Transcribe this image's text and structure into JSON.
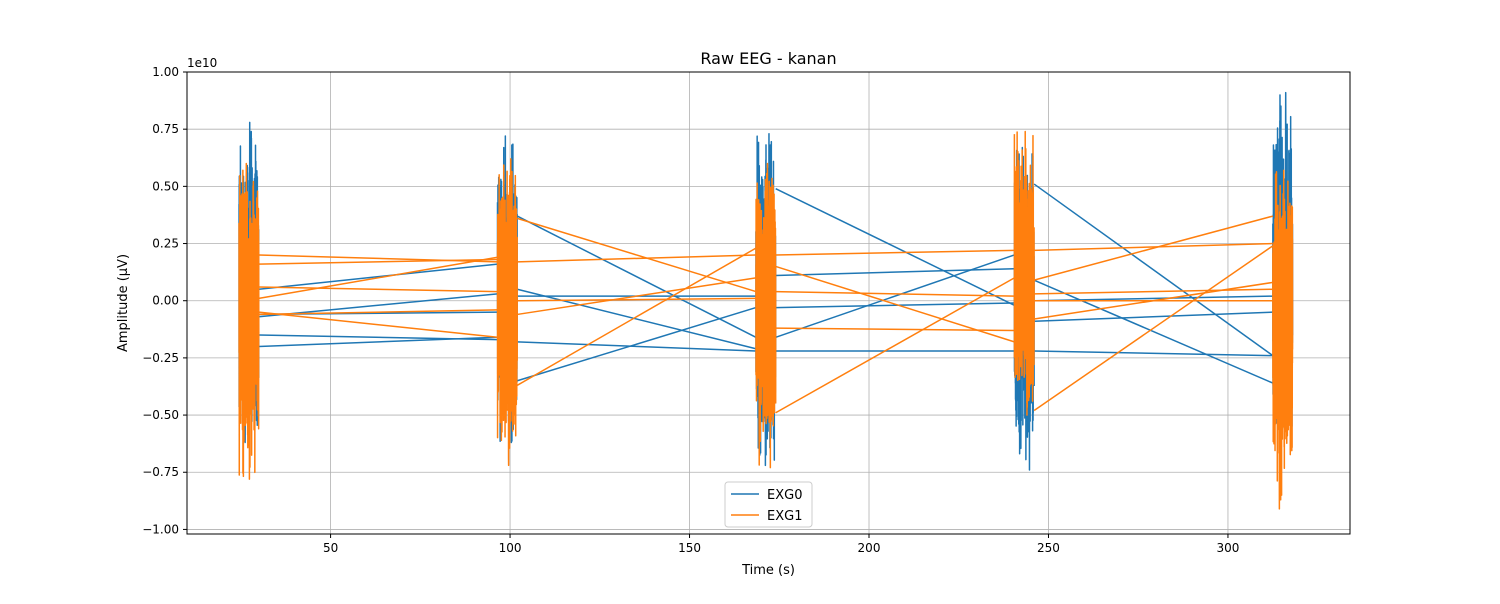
{
  "chart_data": {
    "type": "line",
    "title": "Raw EEG - kanan",
    "xlabel": "Time (s)",
    "ylabel": "Amplitude (µV)",
    "offset_text": "1e10",
    "xlim": [
      10,
      334
    ],
    "ylim": [
      -1.02,
      1.0
    ],
    "x_ticks": [
      50,
      100,
      150,
      200,
      250,
      300
    ],
    "x_tick_labels": [
      "50",
      "100",
      "150",
      "200",
      "250",
      "300"
    ],
    "y_ticks": [
      -1.0,
      -0.75,
      -0.5,
      -0.25,
      0.0,
      0.25,
      0.5,
      0.75,
      1.0
    ],
    "y_tick_labels": [
      "−1.00",
      "−0.75",
      "−0.50",
      "−0.25",
      "0.00",
      "0.25",
      "0.50",
      "0.75",
      "1.00"
    ],
    "grid": true,
    "legend": "lower-center",
    "bursts": [
      {
        "start": 24.5,
        "end": 30
      },
      {
        "start": 96.5,
        "end": 102
      },
      {
        "start": 168.5,
        "end": 174
      },
      {
        "start": 240.5,
        "end": 246
      },
      {
        "start": 312.5,
        "end": 318
      }
    ],
    "series": [
      {
        "name": "EXG0",
        "color": "#1f77b4",
        "burst_peaks": [
          [
            -0.62,
            0.78
          ],
          [
            -0.62,
            0.72
          ],
          [
            -0.72,
            0.73
          ],
          [
            -0.74,
            0.67
          ],
          [
            -0.56,
            0.91
          ]
        ],
        "connectors": [
          [
            [
              30,
              0.05
            ],
            [
              96.5,
              0.16
            ]
          ],
          [
            [
              30,
              -0.07
            ],
            [
              96.5,
              0.03
            ]
          ],
          [
            [
              30,
              -0.15
            ],
            [
              96.5,
              -0.17
            ]
          ],
          [
            [
              30,
              -0.2
            ],
            [
              96.5,
              -0.16
            ]
          ],
          [
            [
              30,
              -0.06
            ],
            [
              96.5,
              -0.05
            ]
          ],
          [
            [
              102,
              0.37
            ],
            [
              168.5,
              -0.16
            ]
          ],
          [
            [
              102,
              0.05
            ],
            [
              168.5,
              -0.21
            ]
          ],
          [
            [
              102,
              -0.18
            ],
            [
              168.5,
              -0.22
            ]
          ],
          [
            [
              102,
              -0.35
            ],
            [
              168.5,
              -0.03
            ]
          ],
          [
            [
              102,
              0.02
            ],
            [
              168.5,
              0.02
            ]
          ],
          [
            [
              174,
              0.49
            ],
            [
              240.5,
              -0.02
            ]
          ],
          [
            [
              174,
              -0.16
            ],
            [
              240.5,
              0.2
            ]
          ],
          [
            [
              174,
              0.11
            ],
            [
              240.5,
              0.14
            ]
          ],
          [
            [
              174,
              -0.22
            ],
            [
              240.5,
              -0.22
            ]
          ],
          [
            [
              174,
              -0.03
            ],
            [
              240.5,
              -0.01
            ]
          ],
          [
            [
              246,
              0.51
            ],
            [
              312.5,
              -0.24
            ]
          ],
          [
            [
              246,
              0.09
            ],
            [
              312.5,
              -0.36
            ]
          ],
          [
            [
              246,
              -0.09
            ],
            [
              312.5,
              -0.05
            ]
          ],
          [
            [
              246,
              -0.22
            ],
            [
              312.5,
              -0.24
            ]
          ],
          [
            [
              246,
              0.0
            ],
            [
              312.5,
              0.02
            ]
          ],
          [
            [
              318,
              -0.08
            ],
            [
              318,
              -0.08
            ]
          ]
        ]
      },
      {
        "name": "EXG1",
        "color": "#ff7f0e",
        "burst_peaks": [
          [
            -0.78,
            0.6
          ],
          [
            -0.72,
            0.62
          ],
          [
            -0.73,
            0.6
          ],
          [
            -0.5,
            0.74
          ],
          [
            -0.91,
            0.57
          ]
        ],
        "connectors": [
          [
            [
              30,
              0.2
            ],
            [
              96.5,
              0.17
            ]
          ],
          [
            [
              30,
              0.16
            ],
            [
              96.5,
              0.18
            ]
          ],
          [
            [
              30,
              0.01
            ],
            [
              96.5,
              0.19
            ]
          ],
          [
            [
              30,
              -0.05
            ],
            [
              96.5,
              -0.16
            ]
          ],
          [
            [
              30,
              0.06
            ],
            [
              96.5,
              0.04
            ]
          ],
          [
            [
              30,
              -0.06
            ],
            [
              96.5,
              -0.04
            ]
          ],
          [
            [
              102,
              0.36
            ],
            [
              168.5,
              0.04
            ]
          ],
          [
            [
              102,
              -0.37
            ],
            [
              168.5,
              0.23
            ]
          ],
          [
            [
              102,
              0.17
            ],
            [
              168.5,
              0.2
            ]
          ],
          [
            [
              102,
              -0.06
            ],
            [
              168.5,
              0.1
            ]
          ],
          [
            [
              102,
              0.0
            ],
            [
              168.5,
              0.01
            ]
          ],
          [
            [
              174,
              -0.49
            ],
            [
              240.5,
              0.1
            ]
          ],
          [
            [
              174,
              0.2
            ],
            [
              240.5,
              0.22
            ]
          ],
          [
            [
              174,
              0.15
            ],
            [
              240.5,
              -0.18
            ]
          ],
          [
            [
              174,
              -0.12
            ],
            [
              240.5,
              -0.13
            ]
          ],
          [
            [
              174,
              0.04
            ],
            [
              240.5,
              0.02
            ]
          ],
          [
            [
              246,
              -0.48
            ],
            [
              312.5,
              0.24
            ]
          ],
          [
            [
              246,
              0.09
            ],
            [
              312.5,
              0.37
            ]
          ],
          [
            [
              246,
              0.22
            ],
            [
              312.5,
              0.25
            ]
          ],
          [
            [
              246,
              -0.08
            ],
            [
              312.5,
              0.08
            ]
          ],
          [
            [
              246,
              0.03
            ],
            [
              312.5,
              0.05
            ]
          ],
          [
            [
              246,
              0.0
            ],
            [
              312.5,
              0.0
            ]
          ]
        ]
      }
    ]
  }
}
